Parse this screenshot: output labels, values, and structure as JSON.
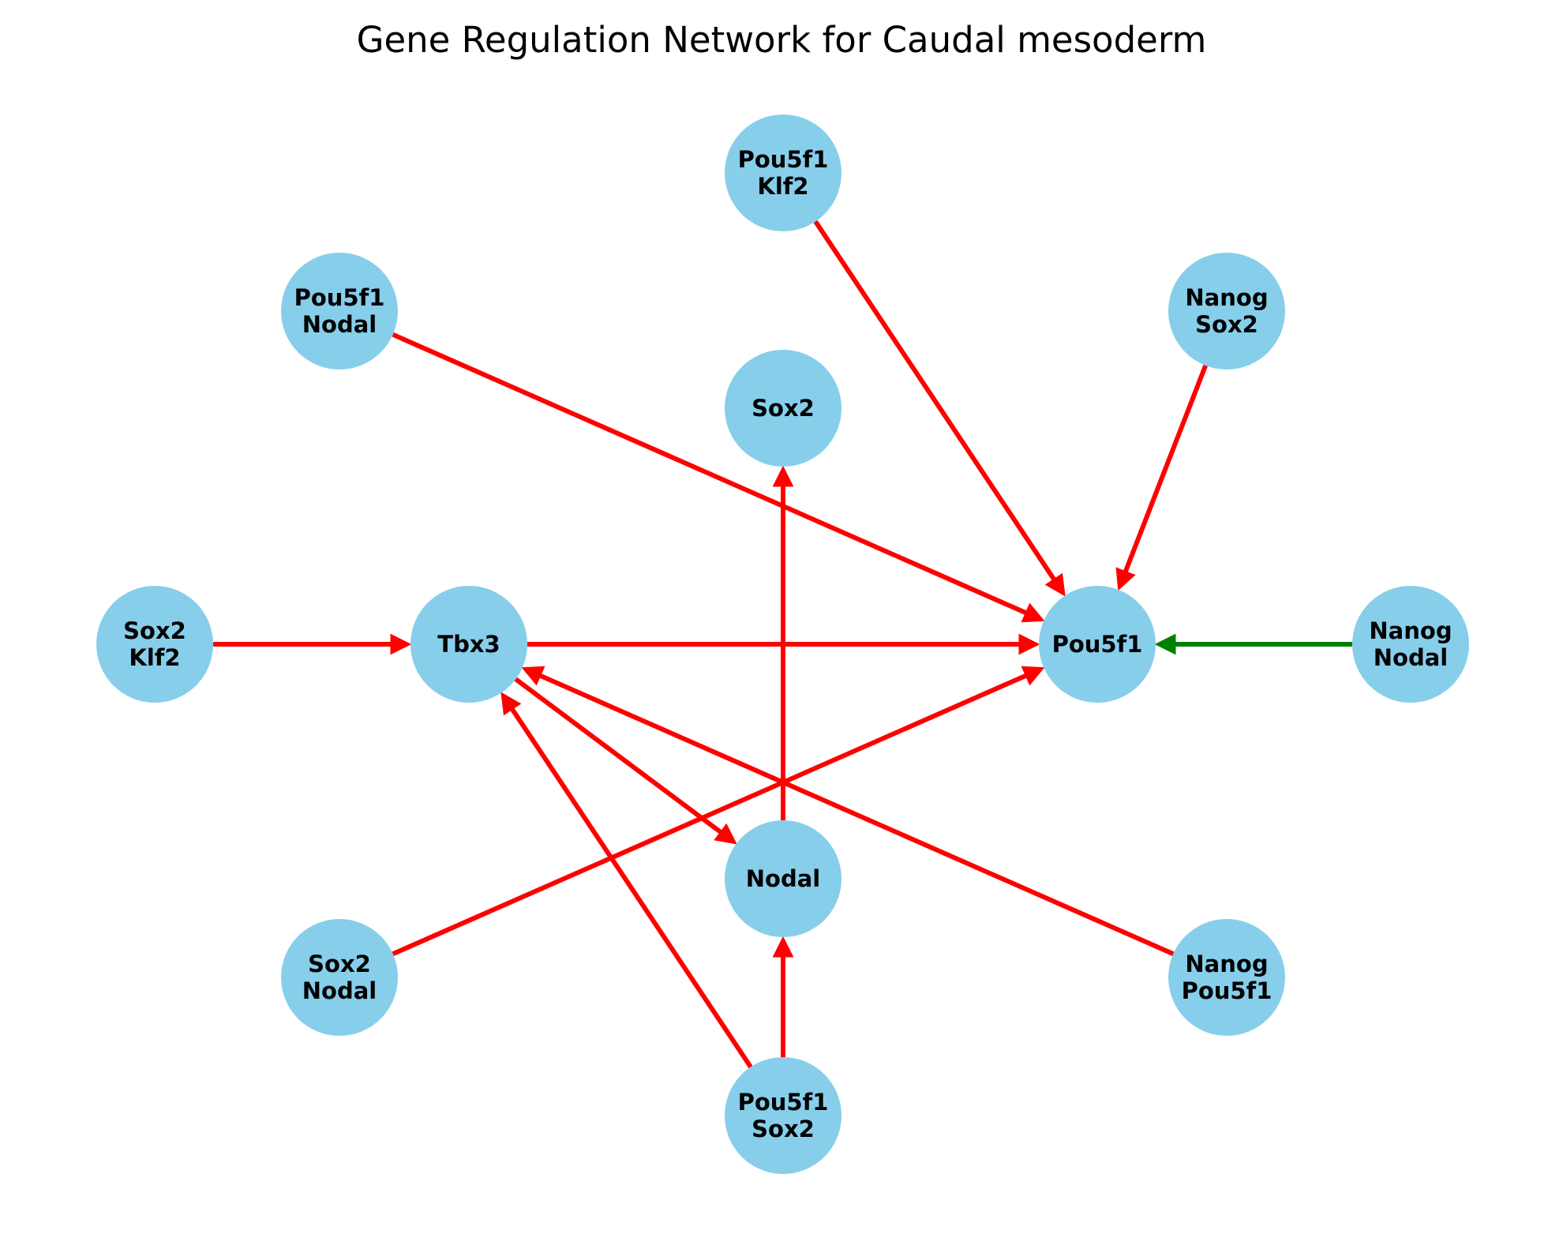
{
  "title": "Gene Regulation Network for Caudal mesoderm",
  "colors": {
    "node_fill": "#87CEEB",
    "activation_edge": "#ff0000",
    "repression_edge": "#008000",
    "text": "#000000"
  },
  "nodes": [
    {
      "id": "pou5f1_klf2",
      "lines": [
        "Pou5f1",
        "Klf2"
      ]
    },
    {
      "id": "pou5f1_nodal",
      "lines": [
        "Pou5f1",
        "Nodal"
      ]
    },
    {
      "id": "nanog_sox2",
      "lines": [
        "Nanog",
        "Sox2"
      ]
    },
    {
      "id": "sox2",
      "lines": [
        "Sox2"
      ]
    },
    {
      "id": "sox2_klf2",
      "lines": [
        "Sox2",
        "Klf2"
      ]
    },
    {
      "id": "tbx3",
      "lines": [
        "Tbx3"
      ]
    },
    {
      "id": "pou5f1",
      "lines": [
        "Pou5f1"
      ]
    },
    {
      "id": "nanog_nodal",
      "lines": [
        "Nanog",
        "Nodal"
      ]
    },
    {
      "id": "nodal",
      "lines": [
        "Nodal"
      ]
    },
    {
      "id": "sox2_nodal",
      "lines": [
        "Sox2",
        "Nodal"
      ]
    },
    {
      "id": "nanog_pou5f1",
      "lines": [
        "Nanog",
        "Pou5f1"
      ]
    },
    {
      "id": "pou5f1_sox2",
      "lines": [
        "Pou5f1",
        "Sox2"
      ]
    }
  ],
  "edges": [
    {
      "from": "pou5f1_nodal",
      "to": "pou5f1",
      "color": "red"
    },
    {
      "from": "pou5f1_klf2",
      "to": "pou5f1",
      "color": "red"
    },
    {
      "from": "nanog_sox2",
      "to": "pou5f1",
      "color": "red"
    },
    {
      "from": "tbx3",
      "to": "pou5f1",
      "color": "red"
    },
    {
      "from": "sox2_nodal",
      "to": "pou5f1",
      "color": "red"
    },
    {
      "from": "nanog_nodal",
      "to": "pou5f1",
      "color": "green"
    },
    {
      "from": "sox2_klf2",
      "to": "tbx3",
      "color": "red"
    },
    {
      "from": "tbx3",
      "to": "nodal",
      "color": "red"
    },
    {
      "from": "nanog_pou5f1",
      "to": "tbx3",
      "color": "red"
    },
    {
      "from": "pou5f1_sox2",
      "to": "tbx3",
      "color": "red"
    },
    {
      "from": "nodal",
      "to": "sox2",
      "color": "red"
    },
    {
      "from": "pou5f1_sox2",
      "to": "nodal",
      "color": "red"
    }
  ]
}
